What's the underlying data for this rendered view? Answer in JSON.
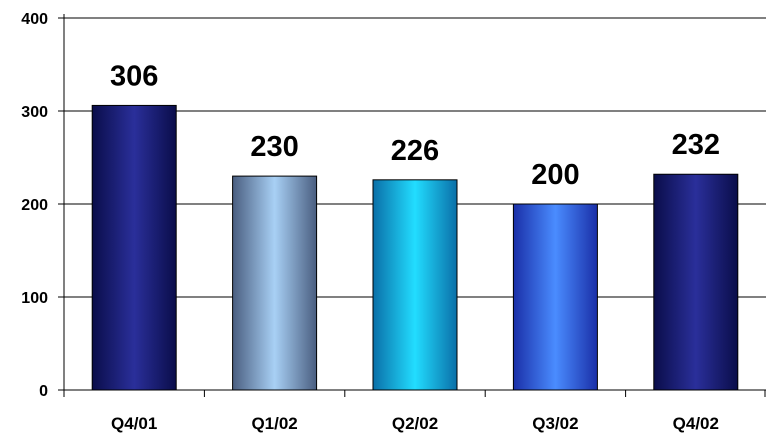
{
  "chart_data": {
    "type": "bar",
    "categories": [
      "Q4/01",
      "Q1/02",
      "Q2/02",
      "Q3/02",
      "Q4/02"
    ],
    "values": [
      306,
      230,
      226,
      200,
      232
    ],
    "data_labels": [
      "306",
      "230",
      "226",
      "200",
      "232"
    ],
    "title": "",
    "xlabel": "",
    "ylabel": "",
    "ylim": [
      0,
      400
    ],
    "yticks": [
      "0",
      "100",
      "200",
      "300",
      "400"
    ],
    "grid": true,
    "legend": "none",
    "bar_gradients": [
      [
        "#0a0d4a",
        "#2a2f9a",
        "#0a0d4a"
      ],
      [
        "#4a5e80",
        "#a8d0f5",
        "#4a5e80"
      ],
      [
        "#0a6fa8",
        "#22ddff",
        "#0a6fa8"
      ],
      [
        "#1a2fa8",
        "#4a8cff",
        "#1a2fa8"
      ],
      [
        "#0a0d4a",
        "#2a2f9a",
        "#0a0d4a"
      ]
    ]
  }
}
